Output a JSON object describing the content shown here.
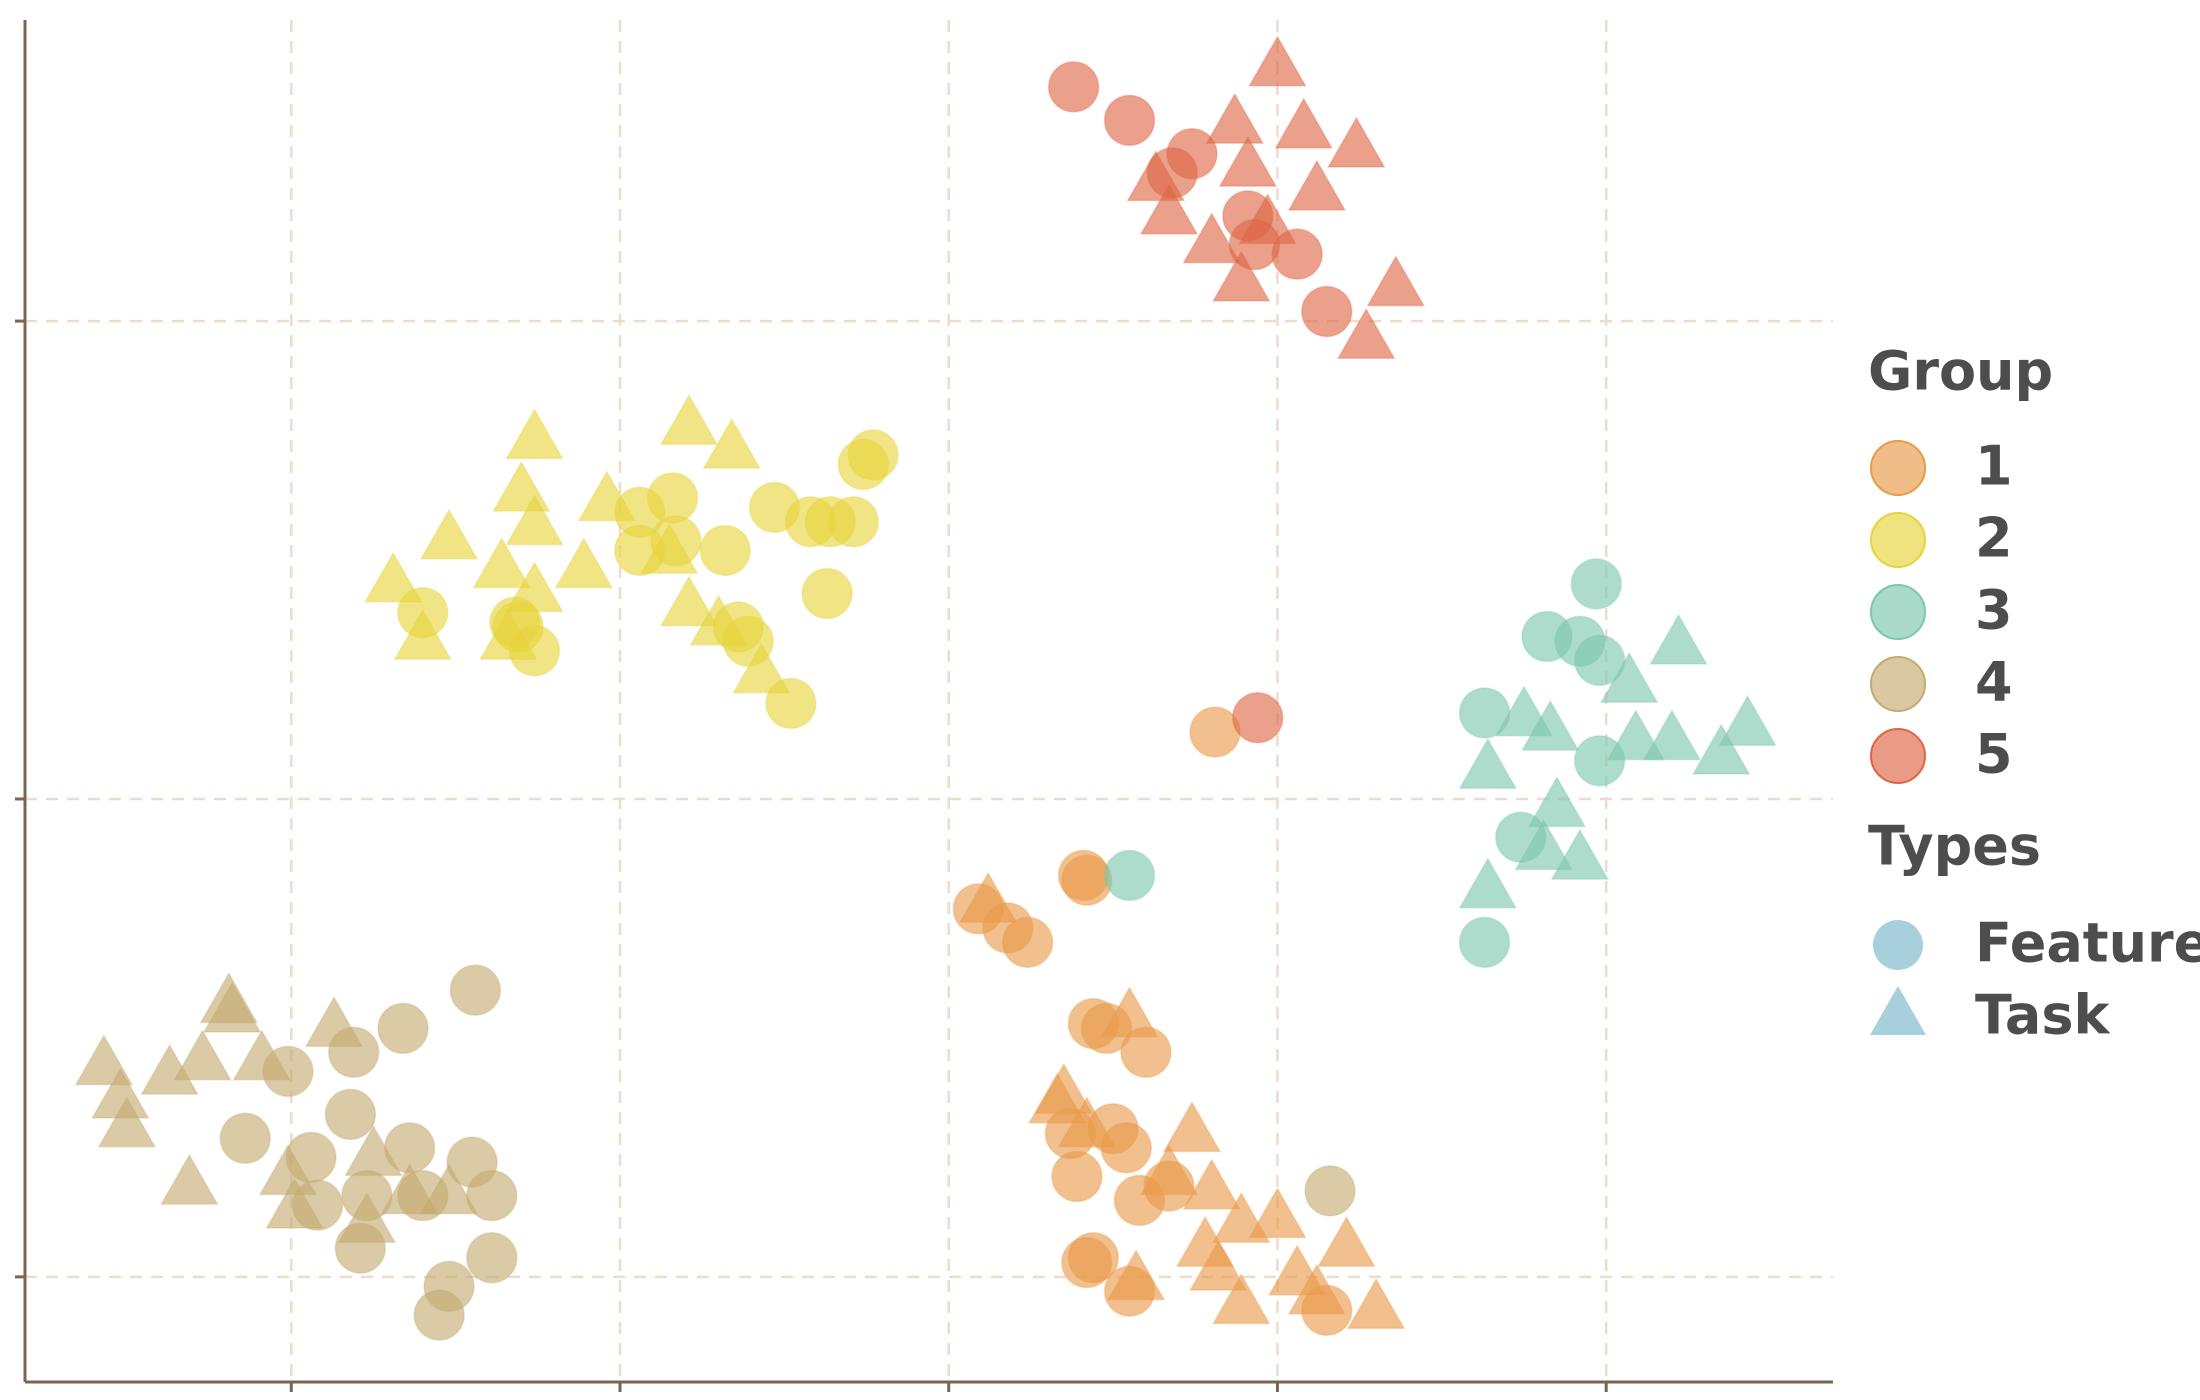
{
  "chart_data": {
    "type": "scatter",
    "xlim": [
      -28.1,
      26.9
    ],
    "ylim": [
      -12.2,
      16.3
    ],
    "xticks": [
      -20,
      -10,
      0,
      10,
      20
    ],
    "yticks": [
      -10,
      0,
      10
    ],
    "grid": true,
    "legend": "right",
    "legend_title": "Group",
    "types_title": "Types",
    "types": [
      {
        "name": "Feature",
        "shape": "circle"
      },
      {
        "name": "Task",
        "shape": "triangle"
      }
    ],
    "types_color": "#9ecad8",
    "series": [
      {
        "name": "1",
        "color": "#e89a48",
        "feature": {
          "x": [
            4.1,
            4.2,
            0.9,
            1.8,
            2.4,
            4.4,
            4.8,
            6.0,
            3.7,
            5.0,
            5.4,
            3.9,
            5.8,
            6.7,
            4.4,
            4.2,
            5.5,
            11.5,
            8.1
          ],
          "y": [
            -1.6,
            -1.7,
            -2.3,
            -2.7,
            -3.0,
            -4.7,
            -4.8,
            -5.3,
            -7.0,
            -6.9,
            -7.3,
            -7.9,
            -8.4,
            -8.1,
            -9.6,
            -9.7,
            -10.3,
            -10.7,
            1.4
          ]
        },
        "task": {
          "x": [
            1.2,
            5.5,
            3.5,
            4.2,
            7.4,
            6.7,
            8.0,
            8.9,
            10.0,
            7.8,
            12.1,
            10.6,
            8.9,
            11.2,
            13.0,
            5.7,
            3.3,
            8.2
          ],
          "y": [
            -2.2,
            -4.6,
            -6.2,
            -6.9,
            -7.0,
            -7.9,
            -8.2,
            -8.9,
            -8.8,
            -9.4,
            -9.4,
            -10.0,
            -10.6,
            -10.4,
            -10.7,
            -10.1,
            -6.4,
            -9.9
          ]
        }
      },
      {
        "name": "2",
        "color": "#e6d43a",
        "feature": {
          "x": [
            -9.4,
            -8.4,
            -8.3,
            -9.4,
            -6.8,
            -5.3,
            -4.2,
            -3.6,
            -2.9,
            -2.3,
            -2.6,
            -3.7,
            -6.4,
            -6.1,
            -4.8,
            -16.0,
            -13.2,
            -13.1,
            -12.6
          ],
          "y": [
            6.0,
            6.3,
            5.4,
            5.2,
            5.2,
            6.1,
            5.8,
            5.8,
            5.8,
            7.2,
            7.0,
            4.3,
            3.6,
            3.3,
            2.0,
            3.9,
            3.7,
            3.6,
            3.1
          ]
        },
        "task": {
          "x": [
            -12.6,
            -7.9,
            -6.6,
            -13.0,
            -10.4,
            -12.6,
            -15.2,
            -16.9,
            -13.6,
            -11.1,
            -12.6,
            -16.0,
            -13.4,
            -8.5,
            -7.9,
            -7.0,
            -5.7
          ],
          "y": [
            7.5,
            7.8,
            7.3,
            6.4,
            6.2,
            5.7,
            5.4,
            4.5,
            4.8,
            4.8,
            4.3,
            3.3,
            3.3,
            5.1,
            4.0,
            3.6,
            2.6
          ]
        }
      },
      {
        "name": "3",
        "color": "#7cc6ac",
        "feature": {
          "x": [
            19.7,
            18.2,
            19.2,
            19.8,
            16.3,
            19.8,
            17.4,
            5.5,
            16.3
          ],
          "y": [
            4.5,
            3.4,
            3.3,
            2.9,
            1.8,
            0.8,
            -0.8,
            -1.6,
            -3.0
          ]
        },
        "task": {
          "x": [
            22.2,
            20.7,
            17.5,
            18.3,
            24.3,
            20.9,
            22.0,
            23.5,
            16.4,
            18.5,
            18.1,
            19.2,
            16.4
          ],
          "y": [
            3.2,
            2.4,
            1.7,
            1.4,
            1.5,
            1.2,
            1.2,
            0.9,
            0.6,
            -0.2,
            -1.1,
            -1.3,
            -1.9
          ]
        }
      },
      {
        "name": "4",
        "color": "#c4aa70",
        "feature": {
          "x": [
            -14.4,
            -16.6,
            -18.1,
            -20.1,
            -21.4,
            -18.2,
            -19.4,
            -16.4,
            -14.5,
            -13.9,
            -19.2,
            -17.7,
            -16.0,
            -17.9,
            -13.9,
            -15.2,
            -15.5,
            11.6
          ],
          "y": [
            -4.0,
            -4.8,
            -5.3,
            -5.7,
            -7.1,
            -6.6,
            -7.5,
            -7.3,
            -7.6,
            -8.3,
            -8.5,
            -8.3,
            -8.3,
            -9.4,
            -9.6,
            -10.2,
            -10.8,
            -8.2
          ]
        },
        "task": {
          "x": [
            -21.9,
            -21.8,
            -18.7,
            -25.7,
            -23.7,
            -22.7,
            -20.9,
            -25.2,
            -25.0,
            -23.1,
            -20.1,
            -17.5,
            -19.9,
            -17.7,
            -16.4,
            -15.2
          ],
          "y": [
            -4.3,
            -4.5,
            -4.8,
            -5.6,
            -5.8,
            -5.5,
            -5.5,
            -6.3,
            -6.9,
            -8.1,
            -7.9,
            -7.5,
            -8.6,
            -8.9,
            -8.3,
            -8.3
          ]
        }
      },
      {
        "name": "5",
        "color": "#de6644",
        "feature": {
          "x": [
            3.8,
            5.5,
            7.4,
            6.8,
            9.1,
            9.3,
            10.6,
            11.5,
            9.4
          ],
          "y": [
            14.9,
            14.2,
            13.5,
            13.1,
            12.2,
            11.6,
            11.4,
            10.2,
            1.7
          ]
        },
        "task": {
          "x": [
            10.0,
            8.7,
            10.8,
            12.4,
            6.3,
            9.1,
            11.2,
            6.7,
            8.0,
            9.7,
            8.9,
            13.6,
            12.7
          ],
          "y": [
            15.3,
            14.1,
            14.0,
            13.6,
            12.9,
            13.2,
            12.7,
            12.2,
            11.6,
            12.0,
            10.8,
            10.7,
            9.6
          ]
        }
      }
    ]
  }
}
